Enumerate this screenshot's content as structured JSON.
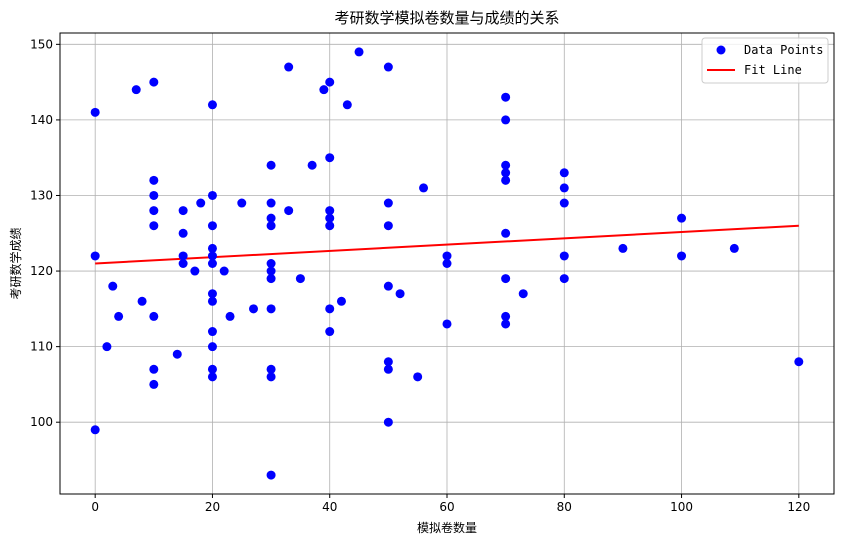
{
  "chart_data": {
    "type": "scatter",
    "title": "考研数学模拟卷数量与成绩的关系",
    "xlabel": "模拟卷数量",
    "ylabel": "考研数学成绩",
    "xlim": [
      -6,
      126
    ],
    "ylim": [
      90.5,
      151.5
    ],
    "xticks": [
      0,
      20,
      40,
      60,
      80,
      100,
      120
    ],
    "yticks": [
      100,
      110,
      120,
      130,
      140,
      150
    ],
    "grid": true,
    "legend_position": "top-right",
    "series": [
      {
        "name": "Data Points",
        "kind": "scatter",
        "color": "#0000ff",
        "points": [
          [
            0,
            141
          ],
          [
            0,
            122
          ],
          [
            0,
            99
          ],
          [
            2,
            110
          ],
          [
            3,
            118
          ],
          [
            4,
            114
          ],
          [
            7,
            144
          ],
          [
            8,
            116
          ],
          [
            10,
            145
          ],
          [
            10,
            132
          ],
          [
            10,
            130
          ],
          [
            10,
            128
          ],
          [
            10,
            126
          ],
          [
            10,
            114
          ],
          [
            10,
            107
          ],
          [
            10,
            105
          ],
          [
            14,
            109
          ],
          [
            15,
            128
          ],
          [
            15,
            125
          ],
          [
            15,
            122
          ],
          [
            15,
            121
          ],
          [
            17,
            120
          ],
          [
            18,
            129
          ],
          [
            20,
            142
          ],
          [
            20,
            130
          ],
          [
            20,
            126
          ],
          [
            20,
            123
          ],
          [
            20,
            122
          ],
          [
            20,
            121
          ],
          [
            20,
            117
          ],
          [
            20,
            116
          ],
          [
            20,
            112
          ],
          [
            20,
            110
          ],
          [
            20,
            107
          ],
          [
            20,
            106
          ],
          [
            22,
            120
          ],
          [
            23,
            114
          ],
          [
            25,
            129
          ],
          [
            27,
            115
          ],
          [
            30,
            134
          ],
          [
            30,
            129
          ],
          [
            30,
            127
          ],
          [
            30,
            126
          ],
          [
            30,
            121
          ],
          [
            30,
            120
          ],
          [
            30,
            119
          ],
          [
            30,
            115
          ],
          [
            30,
            107
          ],
          [
            30,
            106
          ],
          [
            30,
            93
          ],
          [
            33,
            147
          ],
          [
            33,
            128
          ],
          [
            35,
            119
          ],
          [
            37,
            134
          ],
          [
            39,
            144
          ],
          [
            40,
            145
          ],
          [
            40,
            135
          ],
          [
            40,
            128
          ],
          [
            40,
            127
          ],
          [
            40,
            126
          ],
          [
            40,
            115
          ],
          [
            40,
            112
          ],
          [
            42,
            116
          ],
          [
            43,
            142
          ],
          [
            45,
            149
          ],
          [
            50,
            147
          ],
          [
            50,
            129
          ],
          [
            50,
            126
          ],
          [
            50,
            118
          ],
          [
            50,
            108
          ],
          [
            50,
            107
          ],
          [
            50,
            100
          ],
          [
            52,
            117
          ],
          [
            55,
            106
          ],
          [
            56,
            131
          ],
          [
            60,
            122
          ],
          [
            60,
            121
          ],
          [
            60,
            113
          ],
          [
            70,
            143
          ],
          [
            70,
            140
          ],
          [
            70,
            134
          ],
          [
            70,
            133
          ],
          [
            70,
            132
          ],
          [
            70,
            125
          ],
          [
            70,
            119
          ],
          [
            70,
            114
          ],
          [
            70,
            113
          ],
          [
            73,
            117
          ],
          [
            80,
            133
          ],
          [
            80,
            131
          ],
          [
            80,
            129
          ],
          [
            80,
            122
          ],
          [
            80,
            119
          ],
          [
            90,
            123
          ],
          [
            100,
            127
          ],
          [
            100,
            122
          ],
          [
            109,
            123
          ],
          [
            120,
            108
          ]
        ]
      },
      {
        "name": "Fit Line",
        "kind": "line",
        "color": "#ff0000",
        "x": [
          0,
          120
        ],
        "y": [
          121.0,
          126.0
        ]
      }
    ]
  }
}
